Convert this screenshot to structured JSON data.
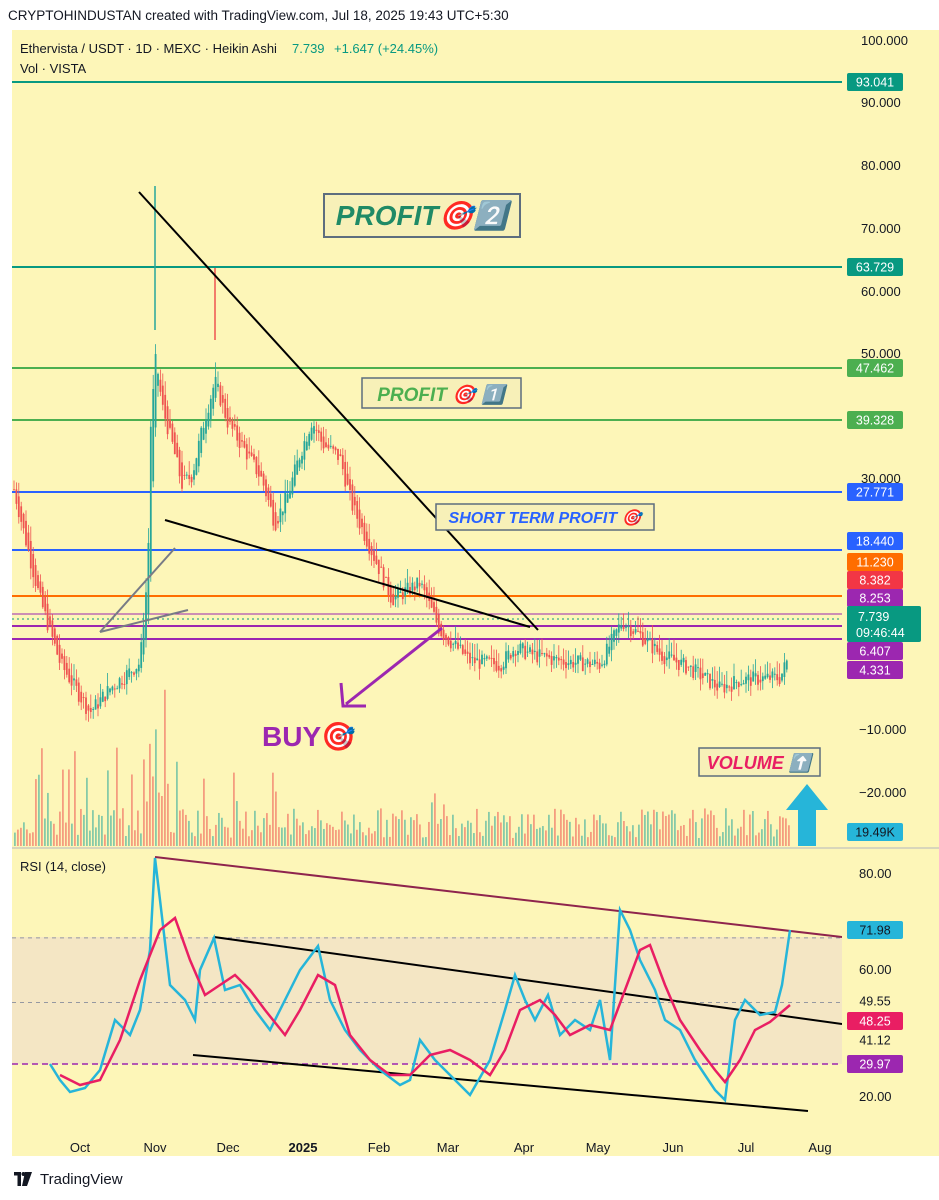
{
  "header": {
    "text": "CRYPTOHINDUSTAN created with TradingView.com, Jul 18, 2025 19:43 UTC+5:30"
  },
  "legend": {
    "symbol": "Ethervista / USDT · 1D · MEXC · Heikin Ashi",
    "last": "7.739",
    "change": "+1.647 (+24.45%)",
    "volume_label": "Vol · VISTA",
    "rsi_label": "RSI (14, close)"
  },
  "colors": {
    "plot_bg": "#fdf6b8",
    "rsi_band": "#f4e6c4",
    "up": "#26a69a",
    "down": "#ef5350",
    "green_line": "#4caf50",
    "teal_line": "#089981",
    "blue_line": "#2962ff",
    "purple": "#9c27b0",
    "rsi_line": "#26b5d9",
    "rsi_ma": "#e91e63"
  },
  "chart_data": [
    {
      "type": "candlestick",
      "title": "Ethervista / USDT · 1D · MEXC · Heikin Ashi",
      "price_axis_ticks": [
        "100.000",
        "90.000",
        "80.000",
        "70.000",
        "60.000",
        "50.000",
        "30.000"
      ],
      "volume_axis_ticks": [
        "−10.000",
        "−20.000"
      ],
      "x_ticks": [
        "Oct",
        "Nov",
        "Dec",
        "2025",
        "Feb",
        "Mar",
        "Apr",
        "May",
        "Jun",
        "Jul",
        "Aug"
      ],
      "levels": [
        {
          "label": "93.041",
          "value": 93.041,
          "color": "#089981"
        },
        {
          "label": "63.729",
          "value": 63.729,
          "color": "#089981"
        },
        {
          "label": "47.462",
          "value": 47.462,
          "color": "#4caf50"
        },
        {
          "label": "39.328",
          "value": 39.328,
          "color": "#4caf50"
        },
        {
          "label": "27.771",
          "value": 27.771,
          "color": "#2962ff"
        },
        {
          "label": "18.440",
          "value": 18.44,
          "color": "#2962ff"
        },
        {
          "label": "11.230",
          "value": 11.23,
          "color": "#ff6d00"
        },
        {
          "label": "8.382",
          "value": 8.382,
          "color": "#f23645"
        },
        {
          "label": "8.253",
          "value": 8.253,
          "color": "#9c27b0"
        },
        {
          "label": "6.407",
          "value": 6.407,
          "color": "#9c27b0"
        },
        {
          "label": "4.331",
          "value": 4.331,
          "color": "#9c27b0"
        }
      ],
      "last_price": {
        "value": "7.739",
        "countdown": "09:46:44"
      },
      "volume_last": "19.49K",
      "annotations": [
        {
          "text": "PROFIT🎯2️⃣"
        },
        {
          "text": "PROFIT 🎯 1️⃣"
        },
        {
          "text": "SHORT TERM PROFIT 🎯"
        },
        {
          "text": "BUY🎯"
        },
        {
          "text": "VOLUME ⬆️"
        }
      ]
    },
    {
      "type": "line",
      "title": "RSI (14, close)",
      "y_ticks": [
        "80.00",
        "60.00",
        "20.00"
      ],
      "series": [
        {
          "name": "RSI",
          "last": "71.98"
        },
        {
          "name": "RSI MA",
          "last": "48.25"
        }
      ],
      "levels": [
        {
          "label": "49.55",
          "value": 49.55
        },
        {
          "label": "41.12",
          "value": 41.12
        },
        {
          "label": "29.97",
          "value": 29.97
        }
      ]
    }
  ],
  "footer": {
    "brand": "TradingView"
  }
}
